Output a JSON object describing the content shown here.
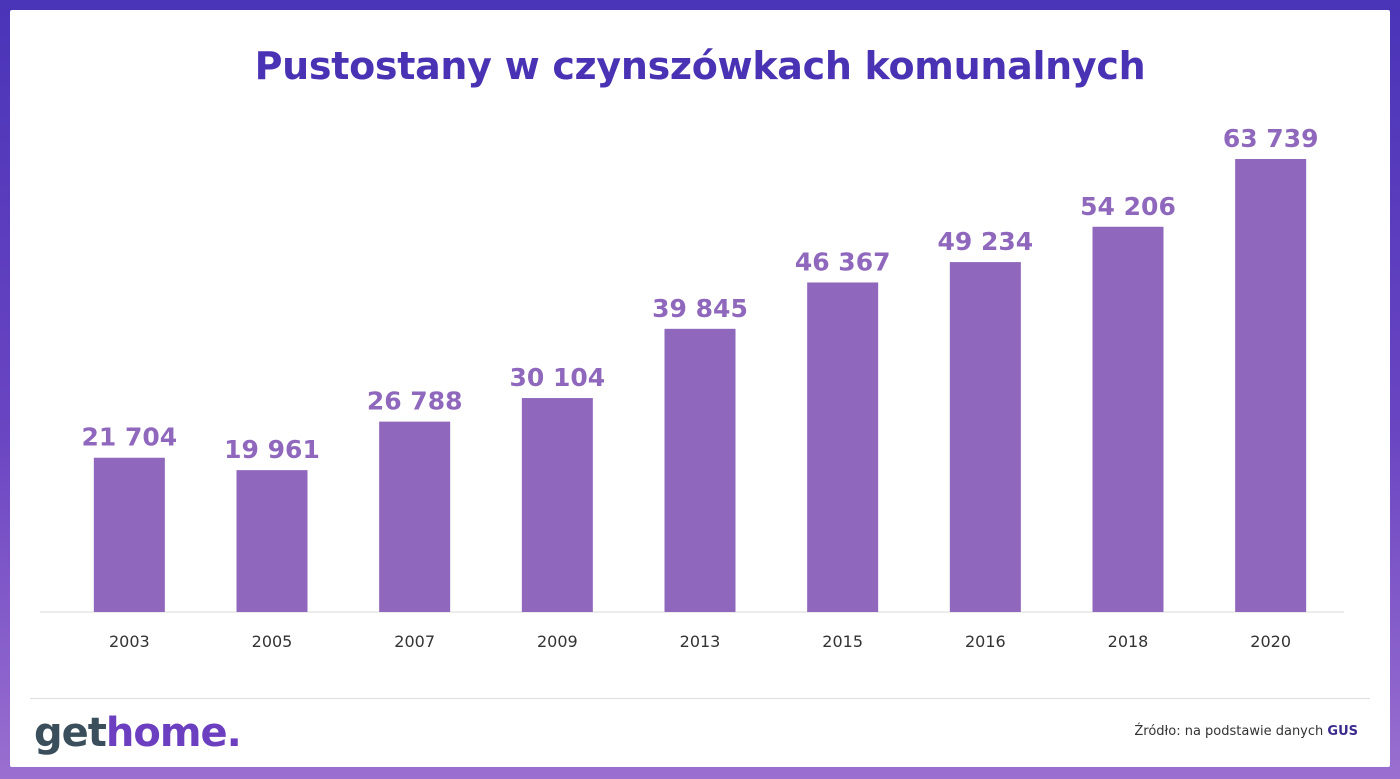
{
  "chart_data": {
    "type": "bar",
    "title": "Pustostany w czynszówkach komunalnych",
    "categories": [
      "2003",
      "2005",
      "2007",
      "2009",
      "2013",
      "2015",
      "2016",
      "2018",
      "2020"
    ],
    "values": [
      21704,
      19961,
      26788,
      30104,
      39845,
      46367,
      49234,
      54206,
      63739
    ],
    "value_labels": [
      "21 704",
      "19 961",
      "26 788",
      "30 104",
      "39 845",
      "46 367",
      "49 234",
      "54 206",
      "63 739"
    ],
    "xlabel": "",
    "ylabel": "",
    "ylim": [
      0,
      63739
    ],
    "grid": false,
    "bar_color": "#8f68bd",
    "label_color": "#8f68bd"
  },
  "logo": {
    "part1": "get",
    "part2": "home",
    "part3": "."
  },
  "source": {
    "prefix": "Źródło: na podstawie danych",
    "name": "GUS"
  },
  "colors": {
    "title": "#4a32b4",
    "accent": "#6b3fc0"
  }
}
